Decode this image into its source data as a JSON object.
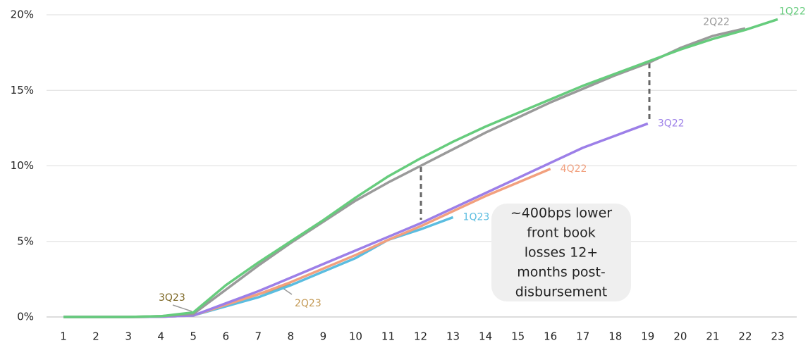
{
  "chart_data": {
    "type": "line",
    "categories": [
      "1",
      "2",
      "3",
      "4",
      "5",
      "6",
      "7",
      "8",
      "9",
      "10",
      "11",
      "12",
      "13",
      "14",
      "15",
      "16",
      "17",
      "18",
      "19",
      "20",
      "21",
      "22",
      "23"
    ],
    "series": [
      {
        "name": "1Q22",
        "color": "#66cc7d",
        "values": [
          0,
          0,
          0,
          0.05,
          0.3,
          2.1,
          3.6,
          5.0,
          6.4,
          7.9,
          9.3,
          10.5,
          11.6,
          12.6,
          13.5,
          14.4,
          15.3,
          16.1,
          16.9,
          17.7,
          18.4,
          19.0,
          19.7
        ]
      },
      {
        "name": "2Q22",
        "color": "#9a9a9a",
        "values": [
          0,
          0,
          0,
          0.05,
          0.2,
          1.8,
          3.4,
          4.9,
          6.3,
          7.7,
          8.9,
          10.0,
          11.1,
          12.2,
          13.2,
          14.2,
          15.1,
          16.0,
          16.8,
          17.8,
          18.6,
          19.1,
          null
        ]
      },
      {
        "name": "3Q22",
        "color": "#9c7fe8",
        "values": [
          0,
          0,
          0,
          0.02,
          0.1,
          0.9,
          1.7,
          2.6,
          3.5,
          4.4,
          5.3,
          6.2,
          7.2,
          8.2,
          9.2,
          10.2,
          11.2,
          12.0,
          12.8,
          null,
          null,
          null,
          null
        ]
      },
      {
        "name": "4Q22",
        "color": "#f2a07e",
        "values": [
          0,
          0,
          0,
          0.02,
          0.1,
          0.8,
          1.5,
          2.3,
          3.2,
          4.1,
          5.1,
          6.0,
          7.0,
          8.0,
          8.9,
          9.8,
          null,
          null,
          null,
          null,
          null,
          null,
          null
        ]
      },
      {
        "name": "1Q23",
        "color": "#5bbde0",
        "values": [
          0,
          0,
          0,
          0.02,
          0.1,
          0.7,
          1.3,
          2.1,
          3.0,
          3.9,
          5.1,
          5.8,
          6.6,
          null,
          null,
          null,
          null,
          null,
          null,
          null,
          null,
          null,
          null
        ]
      },
      {
        "name": "2Q23",
        "color": "#c49a55",
        "values": [
          0,
          0,
          0,
          0.02,
          0.1,
          0.8,
          1.5,
          2.2,
          null,
          null,
          null,
          null,
          null,
          null,
          null,
          null,
          null,
          null,
          null,
          null,
          null,
          null,
          null
        ]
      },
      {
        "name": "3Q23",
        "color": "#7a6420",
        "values": [
          0,
          0,
          0,
          0.03,
          0.25,
          null,
          null,
          null,
          null,
          null,
          null,
          null,
          null,
          null,
          null,
          null,
          null,
          null,
          null,
          null,
          null,
          null,
          null
        ]
      }
    ],
    "ylim": [
      0,
      20
    ],
    "yticks": [
      {
        "value": 0,
        "label": "0%"
      },
      {
        "value": 5,
        "label": "5%"
      },
      {
        "value": 10,
        "label": "10%"
      },
      {
        "value": 15,
        "label": "15%"
      },
      {
        "value": 20,
        "label": "20%"
      }
    ],
    "grid": true,
    "annotation": [
      "~400bps lower",
      "front book",
      "losses 12+",
      "months post-",
      "disbursement"
    ]
  }
}
